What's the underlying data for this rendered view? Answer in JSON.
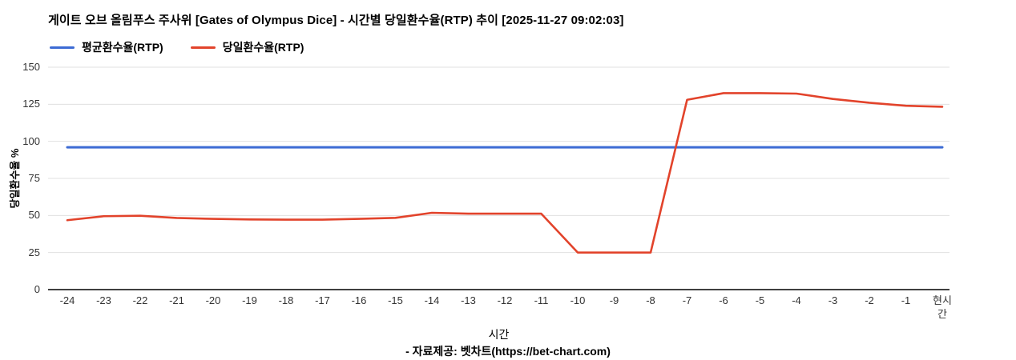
{
  "header": {
    "title": "게이트 오브 올림푸스 주사위 [Gates of Olympus Dice] - 시간별 당일환수율(RTP) 추이 [2025-11-27 09:02:03]"
  },
  "colors": {
    "average_line": "#3c6bd4",
    "daily_line": "#e2432b",
    "grid": "#e0e0e0",
    "axis": "#3f3f3f",
    "tick_text": "#333333"
  },
  "chart_data": {
    "type": "line",
    "categories": [
      "-24",
      "-23",
      "-22",
      "-21",
      "-20",
      "-19",
      "-18",
      "-17",
      "-16",
      "-15",
      "-14",
      "-13",
      "-12",
      "-11",
      "-10",
      "-9",
      "-8",
      "-7",
      "-6",
      "-5",
      "-4",
      "-3",
      "-2",
      "-1",
      "현시간"
    ],
    "series": [
      {
        "name": "평균환수율(RTP)",
        "color": "#3c6bd4",
        "values": [
          96,
          96,
          96,
          96,
          96,
          96,
          96,
          96,
          96,
          96,
          96,
          96,
          96,
          96,
          96,
          96,
          96,
          96,
          96,
          96,
          96,
          96,
          96,
          96,
          96
        ]
      },
      {
        "name": "당일환수율(RTP)",
        "color": "#e2432b",
        "values": [
          46.8,
          49.5,
          49.8,
          48.3,
          47.7,
          47.3,
          47.2,
          47.2,
          47.7,
          48.4,
          51.8,
          51.2,
          51.2,
          51.2,
          25,
          25,
          25,
          128,
          132.5,
          132.5,
          132.2,
          128.6,
          126,
          124,
          123.3
        ]
      }
    ],
    "title": "게이트 오브 올림푸스 주사위 [Gates of Olympus Dice] - 시간별 당일환수율(RTP) 추이 [2025-11-27 09:02:03]",
    "xlabel": "시간",
    "ylabel": "당일환수율 %",
    "ylim": [
      0,
      150
    ],
    "yticks": [
      0,
      25,
      50,
      75,
      100,
      125,
      150
    ],
    "grid": true,
    "legend_position": "top-left"
  },
  "footer": {
    "text": "- 자료제공: 벳차트(https://bet-chart.com)"
  }
}
